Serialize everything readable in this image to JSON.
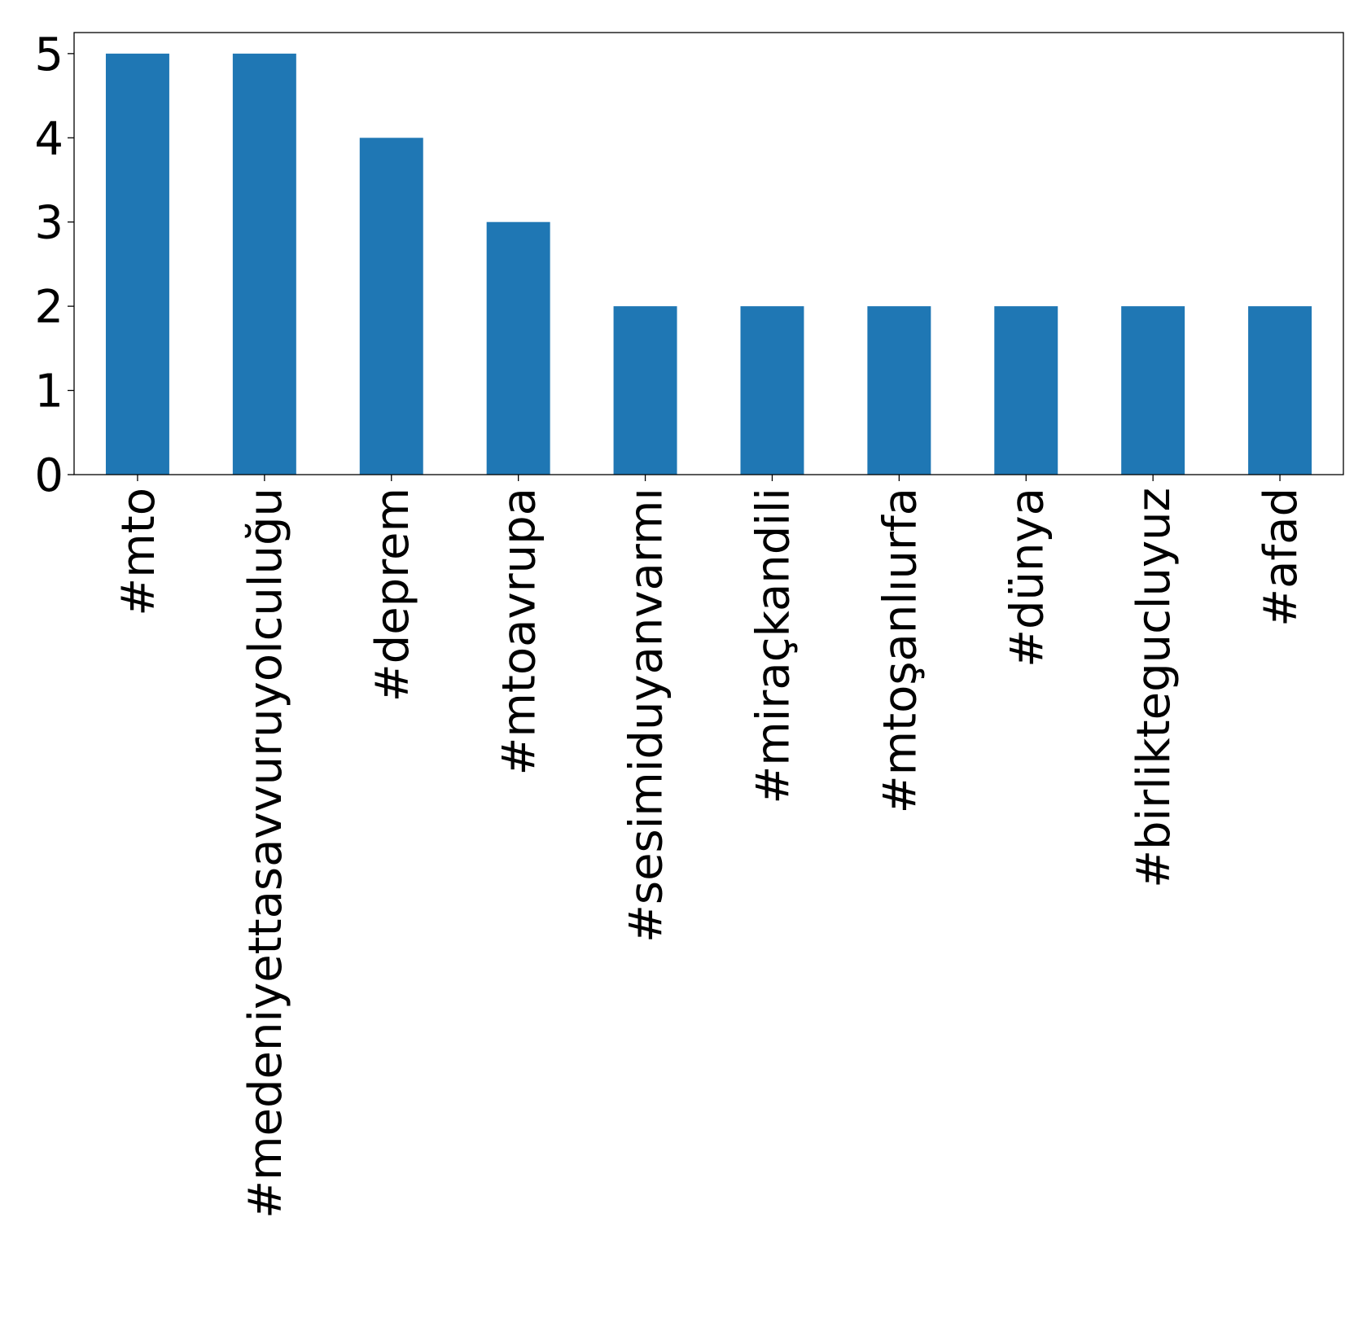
{
  "chart_data": {
    "type": "bar",
    "title": "",
    "xlabel": "",
    "ylabel": "",
    "categories": [
      "#mto",
      "#medeniyettasavvuruyolculuğu",
      "#deprem",
      "#mtoavrupa",
      "#sesimiduyanvarmı",
      "#miraçkandili",
      "#mtoşanlıurfa",
      "#dünya",
      "#birliktegucluyuz",
      "#afad"
    ],
    "values": [
      5,
      5,
      4,
      3,
      2,
      2,
      2,
      2,
      2,
      2
    ],
    "ylim": [
      0,
      5.25
    ],
    "yticks": [
      "0",
      "1",
      "2",
      "3",
      "4",
      "5"
    ],
    "bar_color": "#1f77b4",
    "grid": false,
    "legend": "none"
  }
}
